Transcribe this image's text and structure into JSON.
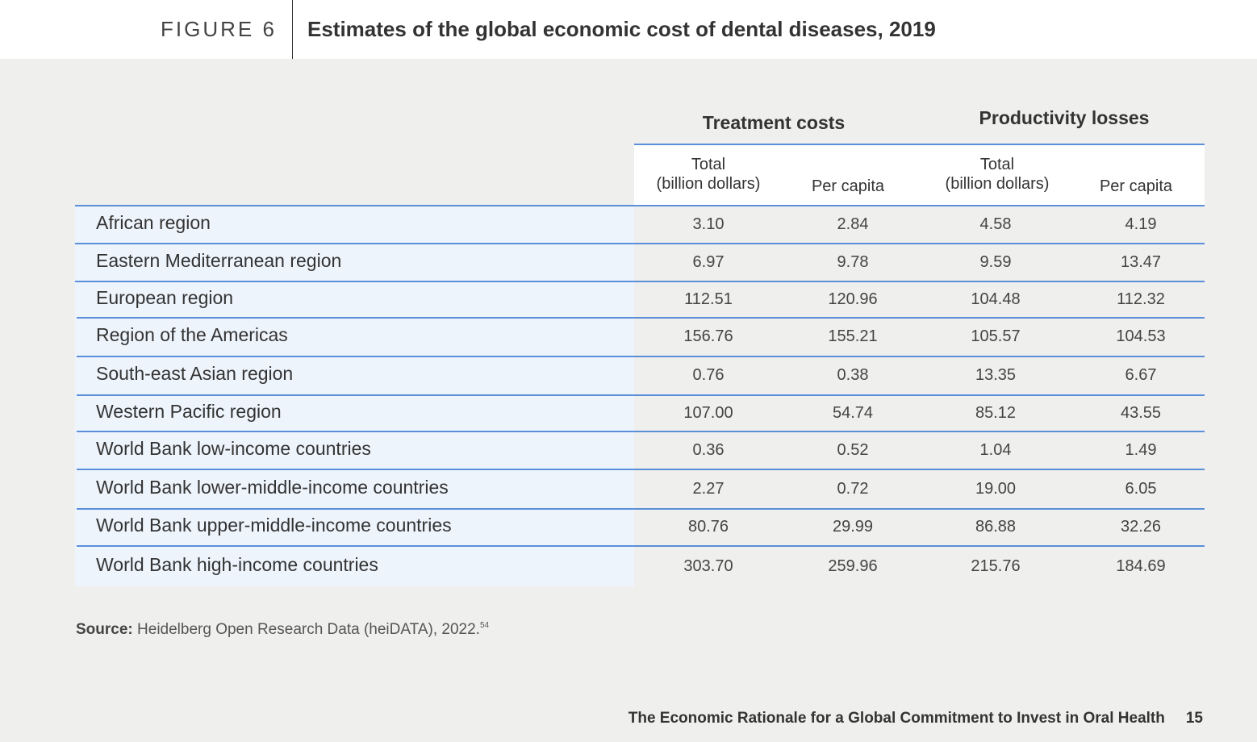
{
  "figure": {
    "label": "FIGURE 6",
    "title": "Estimates of the global economic cost of dental diseases, 2019"
  },
  "table": {
    "groups": [
      "Treatment costs",
      "Productivity losses"
    ],
    "columns": [
      {
        "line1": "Total",
        "line2": "(billion dollars)"
      },
      {
        "line1": "Per capita",
        "line2": ""
      },
      {
        "line1": "Total",
        "line2": "(billion dollars)"
      },
      {
        "line1": "Per capita",
        "line2": ""
      }
    ],
    "rows": [
      {
        "label": "African region",
        "values": [
          "3.10",
          "2.84",
          "4.58",
          "4.19"
        ]
      },
      {
        "label": "Eastern Mediterranean region",
        "values": [
          "6.97",
          "9.78",
          "9.59",
          "13.47"
        ]
      },
      {
        "label": "European region",
        "values": [
          "112.51",
          "120.96",
          "104.48",
          "112.32"
        ]
      },
      {
        "label": "Region of the Americas",
        "values": [
          "156.76",
          "155.21",
          "105.57",
          "104.53"
        ]
      },
      {
        "label": "South-east Asian region",
        "values": [
          "0.76",
          "0.38",
          "13.35",
          "6.67"
        ]
      },
      {
        "label": "Western Pacific region",
        "values": [
          "107.00",
          "54.74",
          "85.12",
          "43.55"
        ]
      },
      {
        "label": "World Bank low-income countries",
        "values": [
          "0.36",
          "0.52",
          "1.04",
          "1.49"
        ]
      },
      {
        "label": "World Bank lower-middle-income countries",
        "values": [
          "2.27",
          "0.72",
          "19.00",
          "6.05"
        ]
      },
      {
        "label": "World Bank upper-middle-income countries",
        "values": [
          "80.76",
          "29.99",
          "86.88",
          "32.26"
        ]
      },
      {
        "label": "World Bank high-income countries",
        "values": [
          "303.70",
          "259.96",
          "215.76",
          "184.69"
        ]
      }
    ]
  },
  "source": {
    "label": "Source:",
    "text": "Heidelberg Open Research Data (heiDATA), 2022.",
    "ref": "54"
  },
  "footer": {
    "title": "The Economic Rationale for a Global Commitment to Invest in Oral Health",
    "page": "15"
  },
  "colors": {
    "rule": "#5b8fd9",
    "label_bg": "#eef4fc",
    "page_bg": "#efefed"
  }
}
